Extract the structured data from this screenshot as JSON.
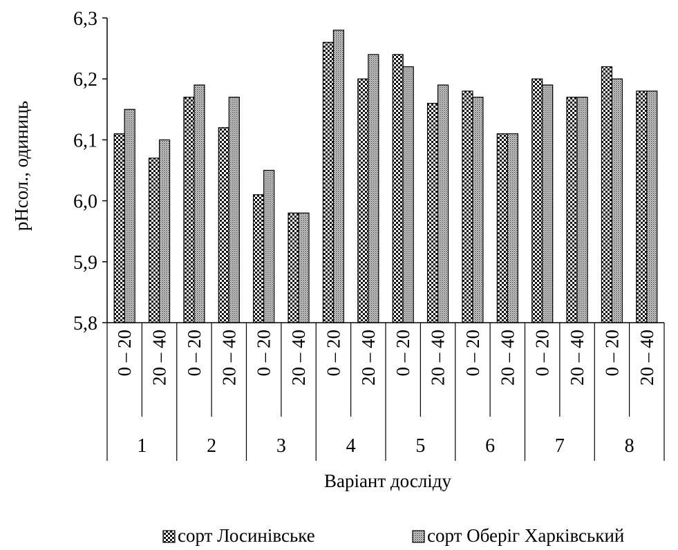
{
  "chart_data": {
    "type": "bar",
    "title": "",
    "xlabel": "Варіант досліду",
    "ylabel": "рНсол., одиниць",
    "ylim": [
      5.8,
      6.3
    ],
    "yticks": [
      "5,8",
      "5,9",
      "6,0",
      "6,1",
      "6,2",
      "6,3"
    ],
    "groups": [
      "1",
      "2",
      "3",
      "4",
      "5",
      "6",
      "7",
      "8"
    ],
    "subcategories": [
      "0 – 20",
      "20 – 40"
    ],
    "series": [
      {
        "name": "сорт Лосинівське",
        "values": [
          6.11,
          6.07,
          6.17,
          6.12,
          6.01,
          5.98,
          6.26,
          6.2,
          6.24,
          6.16,
          6.18,
          6.11,
          6.2,
          6.17,
          6.22,
          6.18
        ]
      },
      {
        "name": "сорт Оберіг Харківський",
        "values": [
          6.15,
          6.1,
          6.19,
          6.17,
          6.05,
          5.98,
          6.28,
          6.24,
          6.22,
          6.19,
          6.17,
          6.11,
          6.19,
          6.17,
          6.2,
          6.18
        ]
      }
    ],
    "legend_position": "bottom",
    "grid": false
  }
}
